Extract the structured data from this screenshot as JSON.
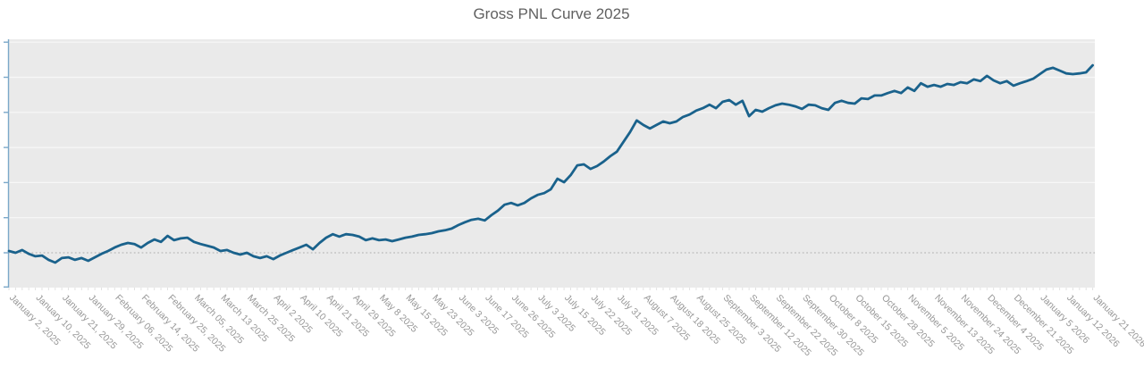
{
  "title": "Gross PNL Curve 2025",
  "chart_data": {
    "type": "line",
    "title": "Gross PNL Curve 2025",
    "series_name": "Gross PNL",
    "legend": "none",
    "grid": true,
    "ylim": [
      -1,
      6.08
    ],
    "y_gridline_step": 1,
    "zero_line": 0,
    "y_axis_labels_visible": false,
    "x_labels": [
      "January 2, 2025",
      "January 10, 2025",
      "January 21, 2025",
      "January 29, 2025",
      "February 06, 2025",
      "February 14, 2025",
      "February 25, 2025",
      "March 05, 2025",
      "March 13 2025",
      "March 25 2025",
      "April 2 2025",
      "April 10 2025",
      "April 21 2025",
      "April 29 2025",
      "May 8 2025",
      "May 15 2025",
      "May 23 2025",
      "June 3 2025",
      "June 17 2025",
      "June 26 2025",
      "July 3 2025",
      "July 15 2025",
      "July 22 2025",
      "July 31 2025",
      "August 7 2025",
      "August 18 2025",
      "August 25 2025",
      "September 3 2025",
      "September 12 2025",
      "September 22 2025",
      "September 30 2025",
      "October 8 2025",
      "October 15 2025",
      "October 28 2025",
      "November 5 2025",
      "November 13 2025",
      "November 24 2025",
      "December 4 2025",
      "December 21 2025",
      "January 5 2026",
      "January 12 2026",
      "January 21 2026"
    ],
    "values": [
      0.05,
      0.0,
      0.08,
      -0.03,
      -0.1,
      -0.08,
      -0.2,
      -0.28,
      -0.15,
      -0.13,
      -0.2,
      -0.15,
      -0.23,
      -0.13,
      -0.03,
      0.05,
      0.15,
      0.23,
      0.28,
      0.25,
      0.15,
      0.28,
      0.38,
      0.31,
      0.48,
      0.36,
      0.41,
      0.43,
      0.31,
      0.25,
      0.2,
      0.15,
      0.05,
      0.08,
      0.0,
      -0.05,
      0.0,
      -0.1,
      -0.15,
      -0.1,
      -0.18,
      -0.08,
      0.0,
      0.08,
      0.15,
      0.23,
      0.1,
      0.28,
      0.43,
      0.53,
      0.46,
      0.53,
      0.51,
      0.46,
      0.36,
      0.41,
      0.36,
      0.38,
      0.33,
      0.38,
      0.43,
      0.46,
      0.51,
      0.53,
      0.56,
      0.61,
      0.64,
      0.69,
      0.79,
      0.87,
      0.94,
      0.97,
      0.92,
      1.07,
      1.2,
      1.37,
      1.42,
      1.35,
      1.42,
      1.55,
      1.65,
      1.7,
      1.81,
      2.11,
      2.01,
      2.21,
      2.49,
      2.52,
      2.39,
      2.47,
      2.6,
      2.75,
      2.88,
      3.16,
      3.44,
      3.77,
      3.64,
      3.54,
      3.64,
      3.74,
      3.69,
      3.74,
      3.87,
      3.94,
      4.05,
      4.12,
      4.22,
      4.12,
      4.3,
      4.35,
      4.22,
      4.33,
      3.89,
      4.07,
      4.02,
      4.12,
      4.2,
      4.25,
      4.22,
      4.17,
      4.1,
      4.22,
      4.2,
      4.12,
      4.07,
      4.27,
      4.33,
      4.27,
      4.25,
      4.4,
      4.38,
      4.48,
      4.48,
      4.55,
      4.61,
      4.55,
      4.71,
      4.61,
      4.83,
      4.73,
      4.78,
      4.73,
      4.81,
      4.78,
      4.86,
      4.83,
      4.94,
      4.89,
      5.04,
      4.91,
      4.83,
      4.89,
      4.76,
      4.83,
      4.89,
      4.96,
      5.09,
      5.22,
      5.27,
      5.19,
      5.11,
      5.09,
      5.11,
      5.14,
      5.34
    ],
    "colors": {
      "line": "#1a628c",
      "plot_background": "#eaeaea",
      "gridline": "#f7f7f7",
      "zero_line": "#c2c2c2",
      "y_axis": "#7ba8c9",
      "x_tick": "#e2e2e2",
      "label_text": "#979797",
      "title_text": "#606060"
    }
  }
}
